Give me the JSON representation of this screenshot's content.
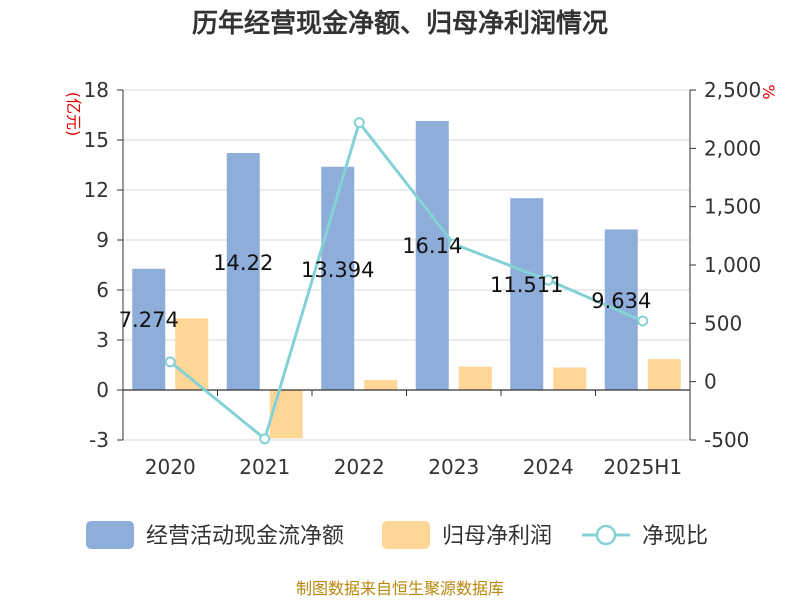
{
  "title": "历年经营现金净额、归母净利润情况",
  "source": "制图数据来自恒生聚源数据库",
  "chart_data": {
    "type": "bar",
    "categories": [
      "2020",
      "2021",
      "2022",
      "2023",
      "2024",
      "2025H1"
    ],
    "series": [
      {
        "name": "经营活动现金流净额",
        "type": "bar",
        "axis": "left",
        "color": "#8eadd9",
        "values": [
          7.274,
          14.22,
          13.394,
          16.14,
          11.511,
          9.634
        ],
        "labels": [
          "7.274",
          "14.22",
          "13.394",
          "16.14",
          "11.511",
          "9.634"
        ]
      },
      {
        "name": "归母净利润",
        "type": "bar",
        "axis": "left",
        "color": "#fed695",
        "values": [
          4.3,
          -2.9,
          0.6,
          1.4,
          1.35,
          1.85
        ]
      },
      {
        "name": "净现比",
        "type": "line",
        "axis": "right",
        "color": "#85d2d6",
        "values": [
          170,
          -490,
          2220,
          1180,
          870,
          520
        ]
      }
    ],
    "left_axis": {
      "unit": "(亿元)",
      "ylim": [
        -3,
        18
      ],
      "ticks": [
        "-3",
        "0",
        "3",
        "6",
        "9",
        "12",
        "15",
        "18"
      ]
    },
    "right_axis": {
      "unit": "%",
      "ylim": [
        -500,
        2500
      ],
      "ticks": [
        "-500",
        "0",
        "500",
        "1,000",
        "1,500",
        "2,000",
        "2,500"
      ]
    },
    "grid": true,
    "legend_position": "bottom"
  }
}
